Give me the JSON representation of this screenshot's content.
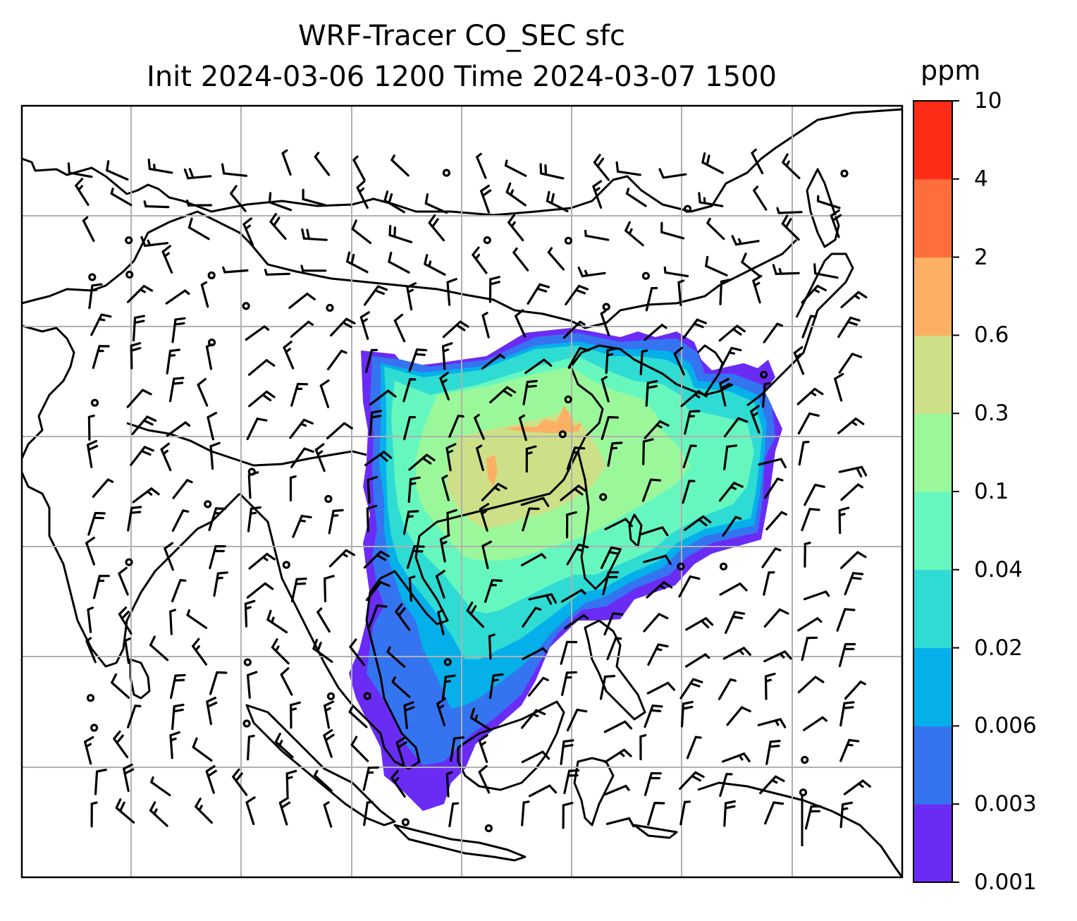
{
  "title": {
    "line1": "WRF-Tracer CO_SEC sfc",
    "line2": "Init 2024-03-06 1200 Time 2024-03-07 1500"
  },
  "colorbar": {
    "units": "ppm",
    "tick_labels": [
      "0.001",
      "0.003",
      "0.006",
      "0.02",
      "0.04",
      "0.1",
      "0.3",
      "0.6",
      "2",
      "4",
      "10"
    ],
    "colors": [
      "#6a2cf5",
      "#3574f0",
      "#05b0ea",
      "#2fdcd3",
      "#66f7bf",
      "#9bf89a",
      "#cde087",
      "#fdb063",
      "#fe6e3d",
      "#fe2d18"
    ]
  },
  "map": {
    "gridlines": true,
    "barb_color": "#000000",
    "coastline_color": "#000000"
  }
}
